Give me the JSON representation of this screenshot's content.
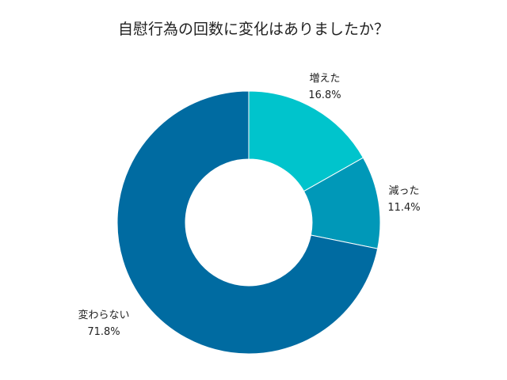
{
  "chart_data": {
    "type": "pie",
    "title": "自慰行為の回数に変化はありましたか？",
    "slices": [
      {
        "label": "増えた",
        "value": 16.8,
        "value_label": "16.8%",
        "color": "#00c4cc"
      },
      {
        "label": "減った",
        "value": 11.4,
        "value_label": "11.4%",
        "color": "#0098b8"
      },
      {
        "label": "変わらない",
        "value": 71.8,
        "value_label": "71.8%",
        "color": "#006ba1"
      }
    ],
    "donut": true,
    "legend": "none"
  }
}
